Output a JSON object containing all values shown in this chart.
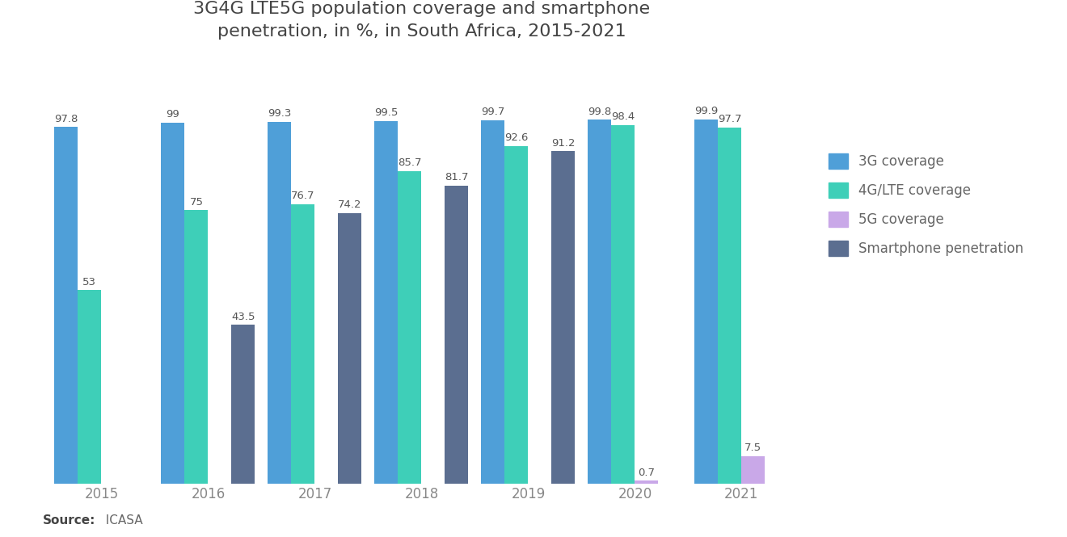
{
  "title": "3G4G LTE5G population coverage and smartphone\npenetration, in %, in South Africa, 2015-2021",
  "years": [
    2015,
    2016,
    2017,
    2018,
    2019,
    2020,
    2021
  ],
  "3g_coverage": [
    97.8,
    99,
    99.3,
    99.5,
    99.7,
    99.8,
    99.9
  ],
  "4g_lte_coverage": [
    53,
    75,
    76.7,
    85.7,
    92.6,
    98.4,
    97.7
  ],
  "5g_coverage": [
    0,
    0,
    0,
    0,
    0,
    0.7,
    7.5
  ],
  "smartphone_penetration": [
    0,
    43.5,
    74.2,
    81.7,
    91.2,
    0,
    0
  ],
  "colors": {
    "3g": "#4F9FD8",
    "4g": "#3ECFB8",
    "5g": "#C9A8E8",
    "smartphone": "#5B6E90"
  },
  "legend_labels": [
    "3G coverage",
    "4G/LTE coverage",
    "5G coverage",
    "Smartphone penetration"
  ],
  "source_bold": "Source:",
  "source_rest": "  ICASA",
  "background_color": "#FFFFFF",
  "bar_width": 0.22,
  "title_fontsize": 16,
  "label_fontsize": 9.5,
  "tick_fontsize": 12,
  "legend_fontsize": 12
}
